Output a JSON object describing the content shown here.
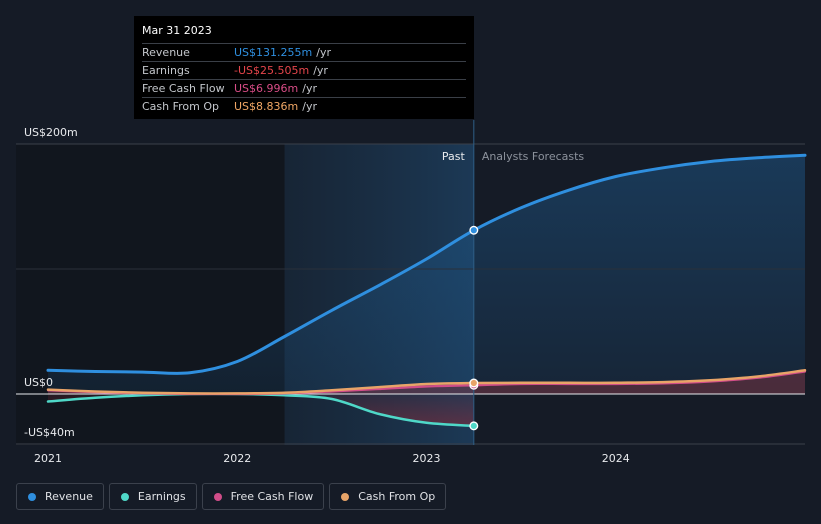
{
  "tooltip": {
    "date": "Mar 31 2023",
    "rows": [
      {
        "label": "Revenue",
        "value": "US$131.255m",
        "unit": "/yr",
        "color": "#2f8fdf"
      },
      {
        "label": "Earnings",
        "value": "-US$25.505m",
        "unit": "/yr",
        "color": "#e5454b"
      },
      {
        "label": "Free Cash Flow",
        "value": "US$6.996m",
        "unit": "/yr",
        "color": "#d94d87"
      },
      {
        "label": "Cash From Op",
        "value": "US$8.836m",
        "unit": "/yr",
        "color": "#f0a765"
      }
    ]
  },
  "legend": [
    {
      "label": "Revenue",
      "color": "#2f8fdf"
    },
    {
      "label": "Earnings",
      "color": "#4fd8c8"
    },
    {
      "label": "Free Cash Flow",
      "color": "#d14d89"
    },
    {
      "label": "Cash From Op",
      "color": "#e8a468"
    }
  ],
  "chart_data": {
    "type": "line",
    "title": "",
    "xlabel": "",
    "ylabel": "",
    "x_ticks": [
      "2021",
      "2022",
      "2023",
      "2024"
    ],
    "y_ticks": [
      {
        "value": 200,
        "label": "US$200m"
      },
      {
        "value": 0,
        "label": "US$0"
      },
      {
        "value": -40,
        "label": "-US$40m"
      }
    ],
    "ylim": [
      -40,
      200
    ],
    "xlim": [
      2021.0,
      2025.0
    ],
    "past_label": "Past",
    "forecast_label": "Analysts Forecasts",
    "past_end": 2023.25,
    "highlight_start": 2022.25,
    "grid": true,
    "legend_position": "bottom",
    "series": [
      {
        "name": "Revenue",
        "color": "#2f8fdf",
        "x": [
          2021.0,
          2021.25,
          2021.5,
          2021.75,
          2022.0,
          2022.25,
          2022.5,
          2022.75,
          2023.0,
          2023.25,
          2023.5,
          2023.75,
          2024.0,
          2024.25,
          2024.5,
          2024.75,
          2025.0
        ],
        "y": [
          19,
          18,
          17.5,
          17,
          26,
          46,
          67,
          87,
          108,
          131,
          149,
          163,
          174,
          181,
          186,
          189,
          191
        ]
      },
      {
        "name": "Earnings",
        "color": "#4fd8c8",
        "x": [
          2021.0,
          2021.25,
          2021.5,
          2021.75,
          2022.0,
          2022.25,
          2022.5,
          2022.75,
          2023.0,
          2023.25
        ],
        "y": [
          -6,
          -3,
          -1,
          0,
          0,
          -1,
          -4,
          -16,
          -23,
          -25.5
        ]
      },
      {
        "name": "Free Cash Flow",
        "color": "#d14d89",
        "x": [
          2021.0,
          2021.25,
          2021.5,
          2021.75,
          2022.0,
          2022.25,
          2022.5,
          2022.75,
          2023.0,
          2023.25,
          2023.5,
          2023.75,
          2024.0,
          2024.25,
          2024.5,
          2024.75,
          2025.0
        ],
        "y": [
          3,
          1.5,
          0.5,
          0,
          0,
          0.5,
          2,
          4,
          6,
          7,
          8,
          8,
          8,
          8.5,
          10,
          13,
          18
        ]
      },
      {
        "name": "Cash From Op",
        "color": "#e8a468",
        "x": [
          2021.0,
          2021.25,
          2021.5,
          2021.75,
          2022.0,
          2022.25,
          2022.5,
          2022.75,
          2023.0,
          2023.25,
          2023.5,
          2023.75,
          2024.0,
          2024.25,
          2024.5,
          2024.75,
          2025.0
        ],
        "y": [
          3.5,
          2,
          1,
          0.5,
          0.5,
          1,
          3,
          5.5,
          8,
          8.8,
          9,
          9,
          9,
          9.5,
          11,
          14,
          19
        ]
      }
    ]
  }
}
